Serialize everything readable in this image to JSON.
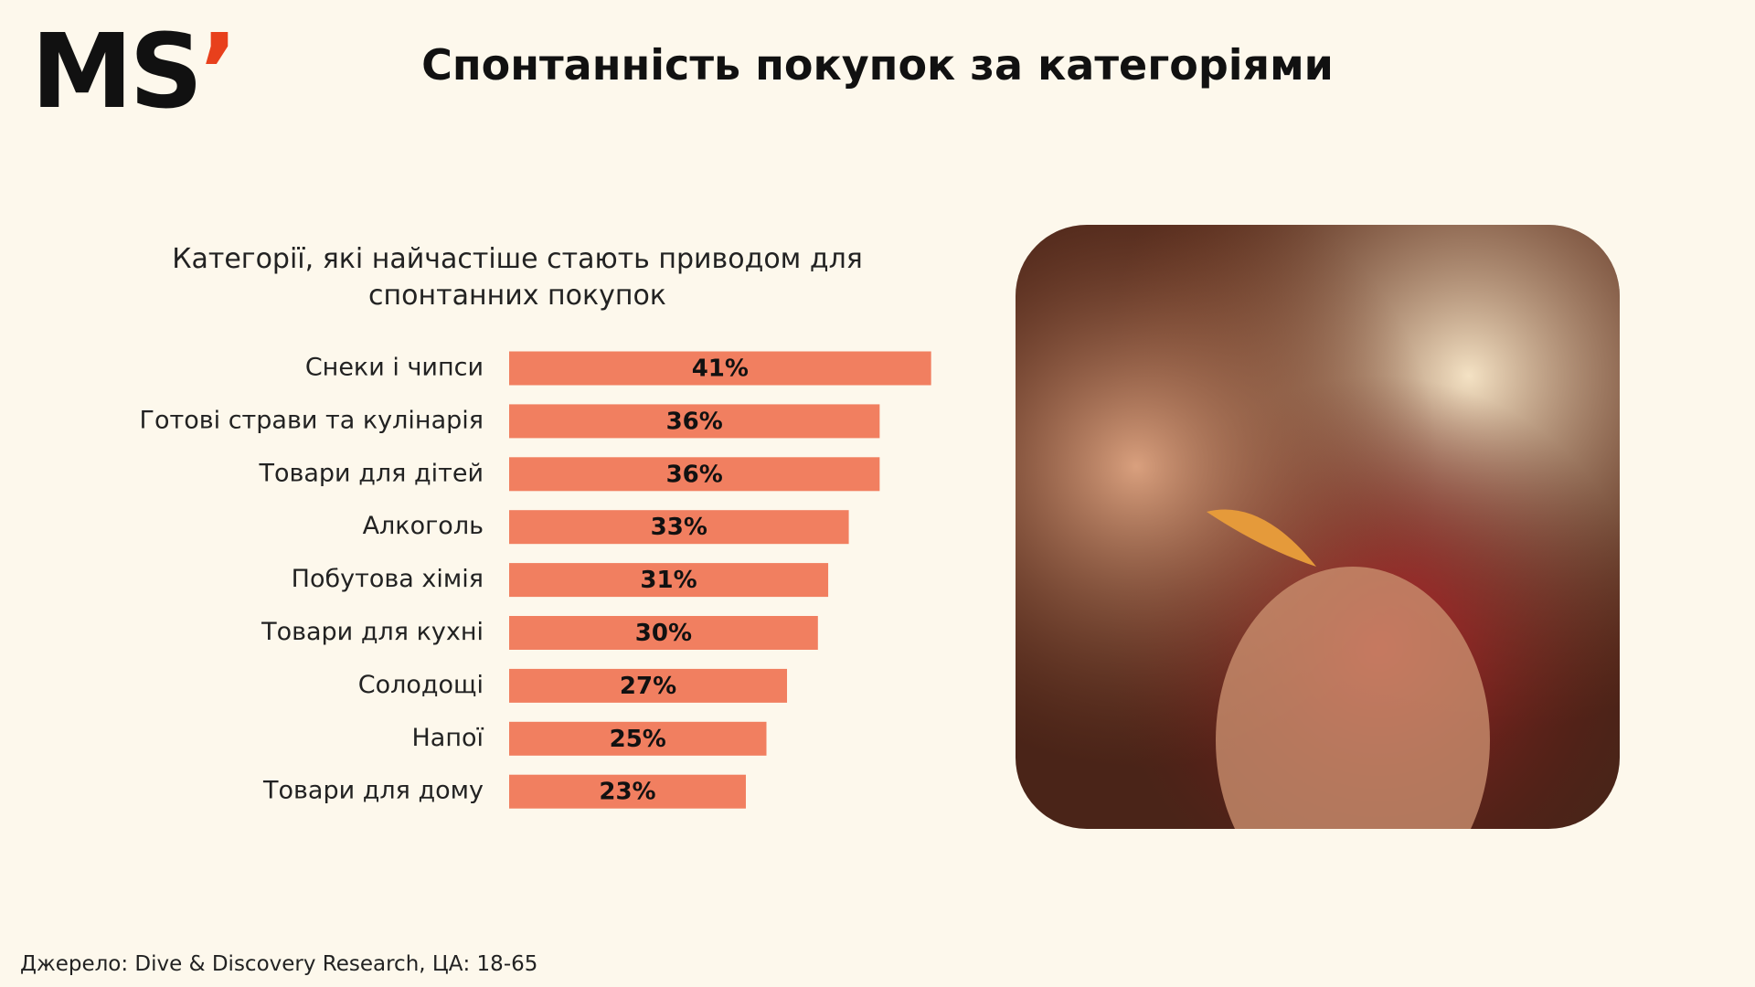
{
  "header": {
    "logo": "MS",
    "logo_mark": "’",
    "title": "Спонтанність покупок за категоріями"
  },
  "chart_data": {
    "type": "hbar",
    "title": "Категорії, які найчастіше стають приводом для спонтанних покупок",
    "categories": [
      "Снеки і чипси",
      "Готові страви та кулінарія",
      "Товари для дітей",
      "Алкоголь",
      "Побутова хімія",
      "Товари для кухні",
      "Солодощі",
      "Напої",
      "Товари для дому"
    ],
    "values": [
      41,
      36,
      36,
      33,
      31,
      30,
      27,
      25,
      23
    ],
    "value_labels": [
      "41%",
      "36%",
      "36%",
      "33%",
      "31%",
      "30%",
      "27%",
      "25%",
      "23%"
    ],
    "color": "#f17f60"
  },
  "footer": {
    "source": "Джерело: Dive & Discovery Research, ЦА: 18-65"
  }
}
